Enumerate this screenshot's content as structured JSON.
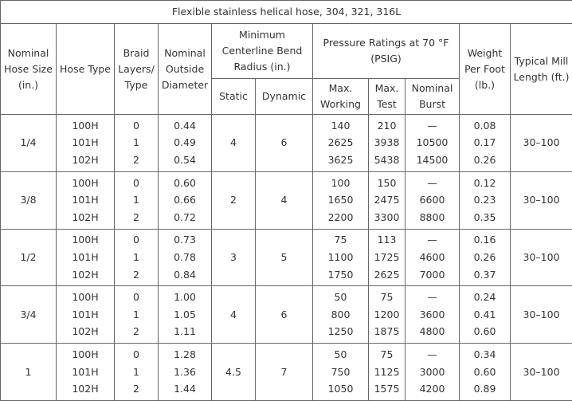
{
  "table": {
    "title": "Flexible stainless helical hose, 304, 321, 316L",
    "headers": {
      "size": "Nominal Hose Size (in.)",
      "type": "Hose Type",
      "braid": "Braid Layers/ Type",
      "od": "Nominal Outside Diameter",
      "bend": "Minimum Centerline Bend Radius (in.)",
      "pressure": "Pressure Ratings at 70 °F (PSIG)",
      "weight": "Weight Per Foot (lb.)",
      "mill": "Typical Mill Length (ft.)",
      "static": "Static",
      "dynamic": "Dynamic",
      "working": "Max. Working",
      "test": "Max. Test",
      "burst": "Nominal Burst"
    },
    "groups": [
      {
        "size": "1/4",
        "static": "4",
        "dynamic": "6",
        "mill": "30–100",
        "rows": [
          [
            "100H",
            "0",
            "0.44",
            "140",
            "210",
            "—",
            "0.08"
          ],
          [
            "101H",
            "1",
            "0.49",
            "2625",
            "3938",
            "10500",
            "0.17"
          ],
          [
            "102H",
            "2",
            "0.54",
            "3625",
            "5438",
            "14500",
            "0.26"
          ]
        ]
      },
      {
        "size": "3/8",
        "static": "2",
        "dynamic": "4",
        "mill": "30–100",
        "rows": [
          [
            "100H",
            "0",
            "0.60",
            "100",
            "150",
            "—",
            "0.12"
          ],
          [
            "101H",
            "1",
            "0.66",
            "1650",
            "2475",
            "6600",
            "0.23"
          ],
          [
            "102H",
            "2",
            "0.72",
            "2200",
            "3300",
            "8800",
            "0.35"
          ]
        ]
      },
      {
        "size": "1/2",
        "static": "3",
        "dynamic": "5",
        "mill": "30–100",
        "rows": [
          [
            "100H",
            "0",
            "0.73",
            "75",
            "113",
            "—",
            "0.16"
          ],
          [
            "101H",
            "1",
            "0.78",
            "1100",
            "1725",
            "4600",
            "0.26"
          ],
          [
            "102H",
            "2",
            "0.84",
            "1750",
            "2625",
            "7000",
            "0.37"
          ]
        ]
      },
      {
        "size": "3/4",
        "static": "4",
        "dynamic": "6",
        "mill": "30–100",
        "rows": [
          [
            "100H",
            "0",
            "1.00",
            "50",
            "75",
            "—",
            "0.24"
          ],
          [
            "101H",
            "1",
            "1.05",
            "800",
            "1200",
            "3600",
            "0.41"
          ],
          [
            "102H",
            "2",
            "1.11",
            "1250",
            "1875",
            "4800",
            "0.60"
          ]
        ]
      },
      {
        "size": "1",
        "static": "4.5",
        "dynamic": "7",
        "mill": "30–100",
        "rows": [
          [
            "100H",
            "0",
            "1.28",
            "50",
            "75",
            "—",
            "0.34"
          ],
          [
            "101H",
            "1",
            "1.36",
            "750",
            "1125",
            "3000",
            "0.60"
          ],
          [
            "102H",
            "2",
            "1.44",
            "1050",
            "1575",
            "4200",
            "0.89"
          ]
        ]
      }
    ]
  }
}
